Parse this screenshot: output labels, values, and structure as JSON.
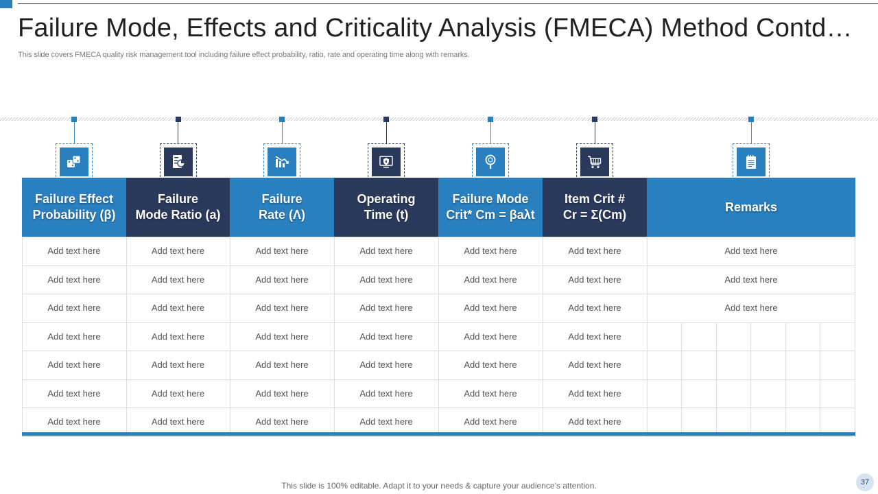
{
  "title": "Failure Mode, Effects and Criticality Analysis (FMECA) Method Contd…",
  "subtitle": "This slide covers FMECA  quality risk management tool including failure effect probability, ratio, rate and operating time along with remarks.",
  "columns": [
    {
      "line1": "Failure Effect",
      "line2": "Probability (β)",
      "icon": "dice-icon",
      "tone": "blue"
    },
    {
      "line1": "Failure",
      "line2": "Mode Ratio (a)",
      "icon": "report-chart-icon",
      "tone": "navy"
    },
    {
      "line1": "Failure",
      "line2": "Rate (Λ)",
      "icon": "declining-chart-icon",
      "tone": "blue"
    },
    {
      "line1": "Operating",
      "line2": "Time (t)",
      "icon": "security-settings-icon",
      "tone": "navy"
    },
    {
      "line1": "Failure Mode",
      "line2": "Crit* Cm = βaλt",
      "icon": "magnifier-icon",
      "tone": "blue"
    },
    {
      "line1": "Item Crit #",
      "line2": "Cr = Σ(Cm)",
      "icon": "shopping-cart-icon",
      "tone": "navy"
    },
    {
      "line1": "Remarks",
      "line2": "",
      "icon": "notepad-icon",
      "tone": "blue"
    }
  ],
  "rows": [
    [
      "Add text here",
      "Add text here",
      "Add text here",
      "Add text here",
      "Add text here",
      "Add text here",
      "Add text here"
    ],
    [
      "Add text here",
      "Add text here",
      "Add text here",
      "Add text here",
      "Add text here",
      "Add text here",
      "Add text here"
    ],
    [
      "Add text here",
      "Add text here",
      "Add text here",
      "Add text here",
      "Add text here",
      "Add text here",
      "Add text here"
    ],
    [
      "Add text here",
      "Add text here",
      "Add text here",
      "Add text here",
      "Add text here",
      "Add text here",
      ""
    ],
    [
      "Add text here",
      "Add text here",
      "Add text here",
      "Add text here",
      "Add text here",
      "Add text here",
      ""
    ],
    [
      "Add text here",
      "Add text here",
      "Add text here",
      "Add text here",
      "Add text here",
      "Add text here",
      ""
    ],
    [
      "Add text here",
      "Add text here",
      "Add text here",
      "Add text here",
      "Add text here",
      "Add text here",
      ""
    ]
  ],
  "footer": "This slide is 100% editable. Adapt it to your needs & capture your audience’s attention.",
  "page_number": "37",
  "colors": {
    "blue": "#2a7fbf",
    "navy": "#2b3a5c"
  }
}
